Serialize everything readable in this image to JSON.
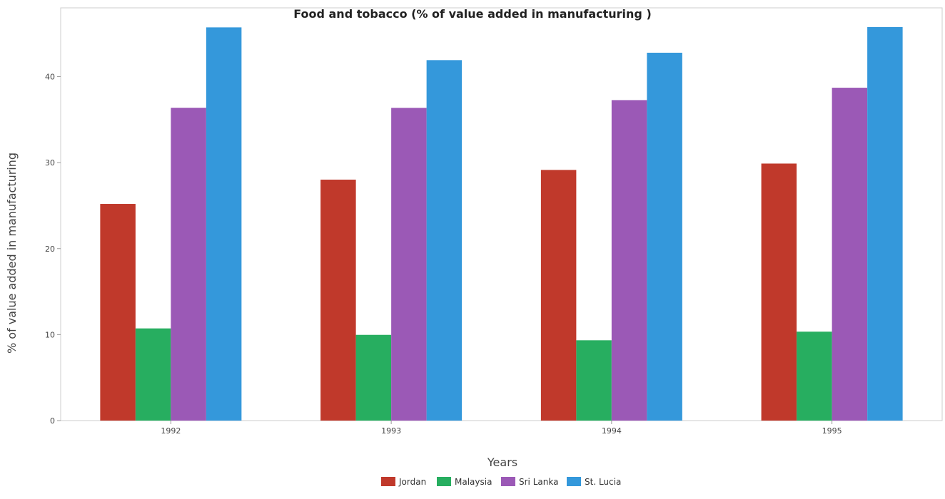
{
  "chart_data": {
    "type": "bar",
    "title": "Food and tobacco (% of value added in manufacturing )",
    "xlabel": "Years",
    "ylabel": "% of value added in manufacturing",
    "categories": [
      "1992",
      "1993",
      "1994",
      "1995"
    ],
    "ylim": [
      0,
      48
    ],
    "yticks": [
      0,
      10,
      20,
      30,
      40
    ],
    "grid": false,
    "legend_position": "bottom",
    "series": [
      {
        "name": "Jordan",
        "color": "#c0392b",
        "values": [
          25.2,
          28.02,
          29.15,
          29.89
        ]
      },
      {
        "name": "Malaysia",
        "color": "#27ae60",
        "values": [
          10.72,
          9.97,
          9.34,
          10.34
        ]
      },
      {
        "name": "Sri Lanka",
        "color": "#9b59b6",
        "values": [
          36.38,
          36.37,
          37.27,
          38.71
        ]
      },
      {
        "name": "St. Lucia",
        "color": "#3498db",
        "values": [
          45.73,
          41.92,
          42.78,
          45.77
        ]
      }
    ]
  }
}
